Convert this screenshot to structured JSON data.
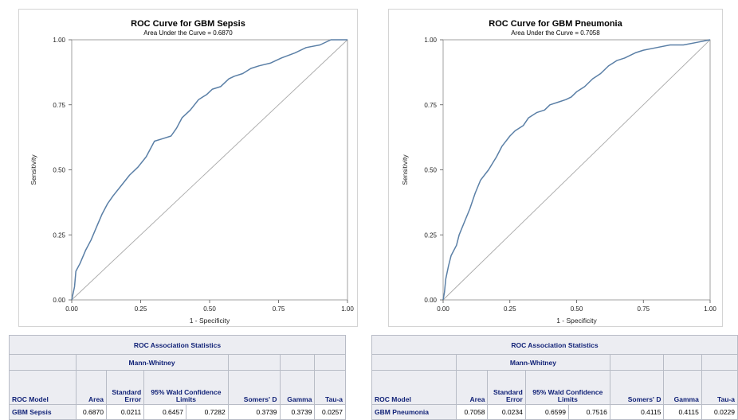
{
  "chart_data": [
    {
      "type": "line",
      "title": "ROC Curve for GBM Sepsis",
      "subtitle": "Area Under the Curve = 0.6870",
      "xlabel": "1 - Specificity",
      "ylabel": "Sensitivity",
      "xlim": [
        0,
        1
      ],
      "ylim": [
        0,
        1
      ],
      "xticks": [
        "0.00",
        "0.25",
        "0.50",
        "0.75",
        "1.00"
      ],
      "yticks": [
        "0.00",
        "0.25",
        "0.50",
        "0.75",
        "1.00"
      ],
      "grid": false,
      "series": [
        {
          "x": [
            0,
            0.01,
            0.015,
            0.03,
            0.05,
            0.07,
            0.09,
            0.11,
            0.13,
            0.15,
            0.18,
            0.21,
            0.24,
            0.27,
            0.3,
            0.33,
            0.36,
            0.38,
            0.4,
            0.43,
            0.46,
            0.49,
            0.51,
            0.54,
            0.57,
            0.59,
            0.62,
            0.65,
            0.68,
            0.72,
            0.76,
            0.81,
            0.85,
            0.9,
            0.94,
            1.0
          ],
          "y": [
            0,
            0.05,
            0.11,
            0.14,
            0.19,
            0.23,
            0.28,
            0.33,
            0.37,
            0.4,
            0.44,
            0.48,
            0.51,
            0.55,
            0.61,
            0.62,
            0.63,
            0.66,
            0.7,
            0.73,
            0.77,
            0.79,
            0.81,
            0.82,
            0.85,
            0.86,
            0.87,
            0.89,
            0.9,
            0.91,
            0.93,
            0.95,
            0.97,
            0.98,
            1.0,
            1.0
          ],
          "color": "#5a7fa6"
        },
        {
          "x": [
            0,
            1
          ],
          "y": [
            0,
            1
          ],
          "color": "#a8a8a8"
        }
      ]
    },
    {
      "type": "line",
      "title": "ROC Curve for GBM Pneumonia",
      "subtitle": "Area Under the Curve = 0.7058",
      "xlabel": "1 - Specificity",
      "ylabel": "Sensitivity",
      "xlim": [
        0,
        1
      ],
      "ylim": [
        0,
        1
      ],
      "xticks": [
        "0.00",
        "0.25",
        "0.50",
        "0.75",
        "1.00"
      ],
      "yticks": [
        "0.00",
        "0.25",
        "0.50",
        "0.75",
        "1.00"
      ],
      "grid": false,
      "series": [
        {
          "x": [
            0,
            0.005,
            0.01,
            0.02,
            0.03,
            0.05,
            0.06,
            0.08,
            0.1,
            0.12,
            0.14,
            0.17,
            0.2,
            0.22,
            0.25,
            0.27,
            0.3,
            0.32,
            0.35,
            0.38,
            0.4,
            0.43,
            0.46,
            0.48,
            0.5,
            0.53,
            0.56,
            0.59,
            0.62,
            0.65,
            0.68,
            0.72,
            0.75,
            0.8,
            0.85,
            0.9,
            0.95,
            1.0
          ],
          "y": [
            0,
            0.03,
            0.08,
            0.13,
            0.17,
            0.21,
            0.25,
            0.3,
            0.35,
            0.41,
            0.46,
            0.5,
            0.55,
            0.59,
            0.63,
            0.65,
            0.67,
            0.7,
            0.72,
            0.73,
            0.75,
            0.76,
            0.77,
            0.78,
            0.8,
            0.82,
            0.85,
            0.87,
            0.9,
            0.92,
            0.93,
            0.95,
            0.96,
            0.97,
            0.98,
            0.98,
            0.99,
            1.0
          ],
          "color": "#5a7fa6"
        },
        {
          "x": [
            0,
            1
          ],
          "y": [
            0,
            1
          ],
          "color": "#a8a8a8"
        }
      ]
    }
  ],
  "tables": {
    "caption": "ROC Association Statistics",
    "group_header": "Mann-Whitney",
    "headers": {
      "model": "ROC Model",
      "area": "Area",
      "std_error": "Standard Error",
      "ci": "95% Wald Confidence Limits",
      "somers": "Somers' D",
      "gamma": "Gamma",
      "tau": "Tau-a"
    },
    "left": {
      "model": "GBM Sepsis",
      "area": "0.6870",
      "std_error": "0.0211",
      "ci_low": "0.6457",
      "ci_high": "0.7282",
      "somers": "0.3739",
      "gamma": "0.3739",
      "tau": "0.0257"
    },
    "right": {
      "model": "GBM Pneumonia",
      "area": "0.7058",
      "std_error": "0.0234",
      "ci_low": "0.6599",
      "ci_high": "0.7516",
      "somers": "0.4115",
      "gamma": "0.4115",
      "tau": "0.0229"
    }
  }
}
